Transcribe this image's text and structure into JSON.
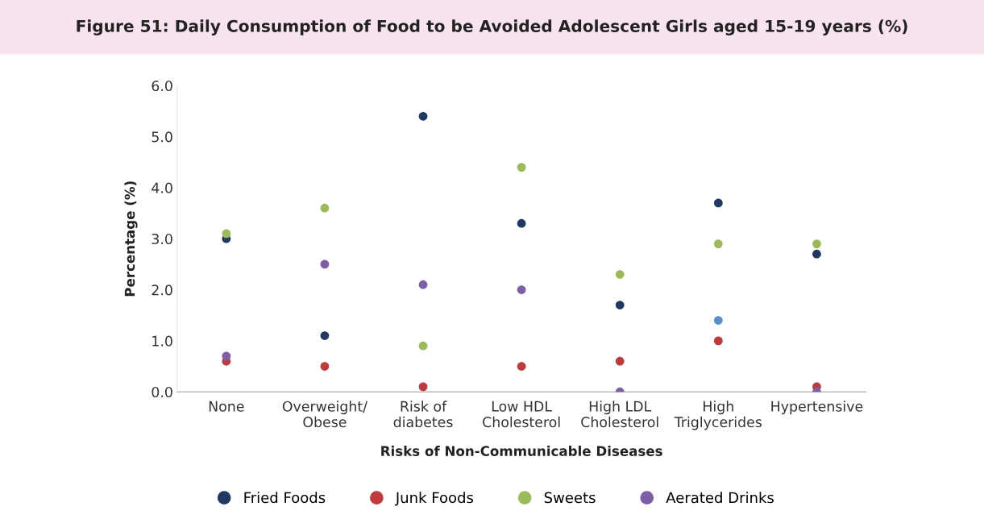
{
  "chart_data": {
    "type": "scatter",
    "title": "Figure 51: Daily Consumption of Food to be Avoided Adolescent Girls aged 15-19 years (%)",
    "xlabel": "Risks of Non-Communicable Diseases",
    "ylabel": "Percentage (%)",
    "categories": [
      "None",
      "Overweight/\nObese",
      "Risk of\ndiabetes",
      "Low HDL\nCholesterol",
      "High LDL\nCholesterol",
      "High\nTriglycerides",
      "Hypertensive"
    ],
    "series": [
      {
        "name": "Fried Foods",
        "color": "#1f3864",
        "values": [
          3.0,
          1.1,
          5.4,
          3.3,
          1.7,
          3.7,
          2.7
        ]
      },
      {
        "name": "Junk Foods",
        "color": "#c0393b",
        "values": [
          0.6,
          0.5,
          0.1,
          0.5,
          0.6,
          1.0,
          0.1
        ]
      },
      {
        "name": "Sweets",
        "color": "#9bbb59",
        "values": [
          3.1,
          3.6,
          0.9,
          4.4,
          2.3,
          2.9,
          2.9
        ]
      },
      {
        "name": "Aerated Drinks",
        "color": "#7e5ea6",
        "colors": [
          "#7e5ea6",
          "#7e5ea6",
          "#7e5ea6",
          "#7e5ea6",
          "#7e5ea6",
          "#5b8fcb",
          "#7e5ea6"
        ],
        "values": [
          0.7,
          2.5,
          2.1,
          2.0,
          0.0,
          1.4,
          0.0
        ]
      }
    ],
    "ylim": [
      0,
      6
    ],
    "yticks": [
      {
        "value": 0,
        "label": "0.0"
      },
      {
        "value": 1,
        "label": "1.0"
      },
      {
        "value": 2,
        "label": "2.0"
      },
      {
        "value": 3,
        "label": "3.0"
      },
      {
        "value": 4,
        "label": "4.0"
      },
      {
        "value": 5,
        "label": "5.0"
      },
      {
        "value": 6,
        "label": "6.0"
      }
    ],
    "grid": false,
    "legend": "bottom",
    "marker": "circle"
  }
}
